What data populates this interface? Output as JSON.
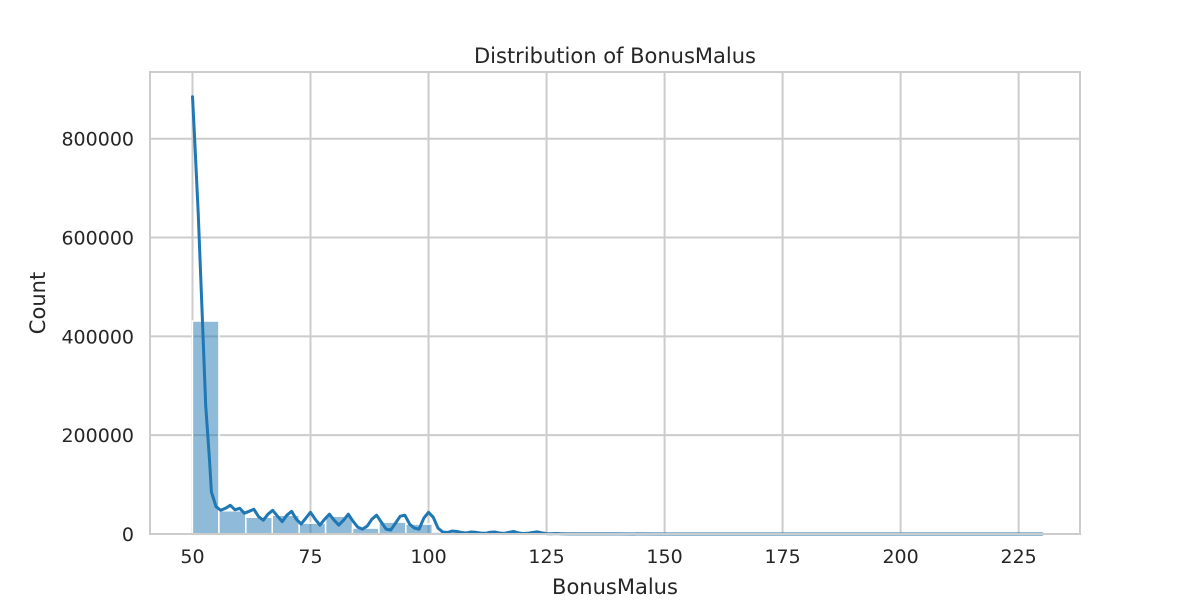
{
  "chart_data": {
    "type": "bar",
    "title": "Distribution of BonusMalus",
    "xlabel": "BonusMalus",
    "ylabel": "Count",
    "xlim": [
      41,
      238
    ],
    "ylim": [
      0,
      935000
    ],
    "xticks": [
      50,
      75,
      100,
      125,
      150,
      175,
      200,
      225
    ],
    "yticks": [
      0,
      200000,
      400000,
      600000,
      800000
    ],
    "grid": true,
    "bin_edges": [
      50.0,
      55.6,
      61.3,
      66.9,
      72.6,
      78.2,
      83.9,
      89.5,
      95.2,
      100.8,
      106.5,
      112.1,
      117.7,
      123.4,
      129.0,
      134.7,
      140.3,
      146.0,
      151.6,
      157.3,
      162.9,
      168.5,
      174.2,
      179.8,
      185.5,
      191.1,
      196.8,
      202.4,
      208.1,
      213.7,
      219.4,
      225.0,
      230.0
    ],
    "counts": [
      431000,
      47000,
      34000,
      38000,
      22000,
      36000,
      12000,
      24000,
      20000,
      4000,
      2000,
      2000,
      1500,
      1000,
      800,
      500,
      400,
      300,
      300,
      200,
      200,
      200,
      150,
      150,
      100,
      100,
      100,
      100,
      80,
      80,
      80,
      80
    ],
    "kde": {
      "x": [
        50.0,
        50.4,
        51.2,
        52.0,
        52.8,
        53.6,
        54.0,
        55.0,
        56.0,
        57.0,
        58.0,
        59.0,
        60.0,
        61.0,
        62.0,
        63.0,
        64.0,
        65.0,
        66.0,
        67.0,
        68.0,
        69.0,
        70.0,
        71.0,
        72.0,
        73.0,
        74.0,
        75.0,
        76.0,
        77.0,
        78.0,
        79.0,
        80.0,
        81.0,
        82.0,
        83.0,
        84.0,
        85.0,
        86.0,
        87.0,
        88.0,
        89.0,
        90.0,
        91.0,
        92.0,
        93.0,
        94.0,
        95.0,
        96.0,
        97.0,
        98.0,
        99.0,
        100.0,
        101.0,
        102.0,
        103.0,
        104.0,
        105.0,
        106.0,
        107.0,
        108.0,
        109.0,
        110.0,
        111.0,
        112.0,
        113.0,
        114.0,
        115.0,
        116.0,
        117.0,
        118.0,
        119.0,
        120.0,
        121.0,
        122.0,
        123.0,
        124.0,
        125.0,
        126.0,
        127.0,
        128.0,
        130.0,
        135.0,
        140.0,
        150.0,
        160.0,
        175.0,
        190.0,
        200.0,
        215.0,
        225.0,
        230.0
      ],
      "y": [
        885000,
        810000,
        650000,
        460000,
        260000,
        150000,
        85000,
        55000,
        48000,
        52000,
        58000,
        49000,
        52000,
        42000,
        46000,
        50000,
        35000,
        28000,
        40000,
        48000,
        36000,
        25000,
        38000,
        46000,
        30000,
        20000,
        32000,
        44000,
        30000,
        18000,
        30000,
        40000,
        28000,
        18000,
        28000,
        40000,
        26000,
        14000,
        10000,
        16000,
        30000,
        38000,
        24000,
        10000,
        8000,
        22000,
        36000,
        38000,
        20000,
        12000,
        10000,
        32000,
        44000,
        34000,
        12000,
        4000,
        3000,
        6000,
        5000,
        3000,
        2000,
        4000,
        3500,
        2000,
        1500,
        3500,
        4000,
        2000,
        1200,
        3500,
        5000,
        2500,
        1000,
        1500,
        3000,
        4500,
        2500,
        800,
        500,
        1000,
        700,
        300,
        200,
        150,
        100,
        80,
        60,
        40,
        30,
        20,
        10,
        0
      ]
    },
    "bar_color": "#1f77b4",
    "line_color": "#1f77b4"
  }
}
